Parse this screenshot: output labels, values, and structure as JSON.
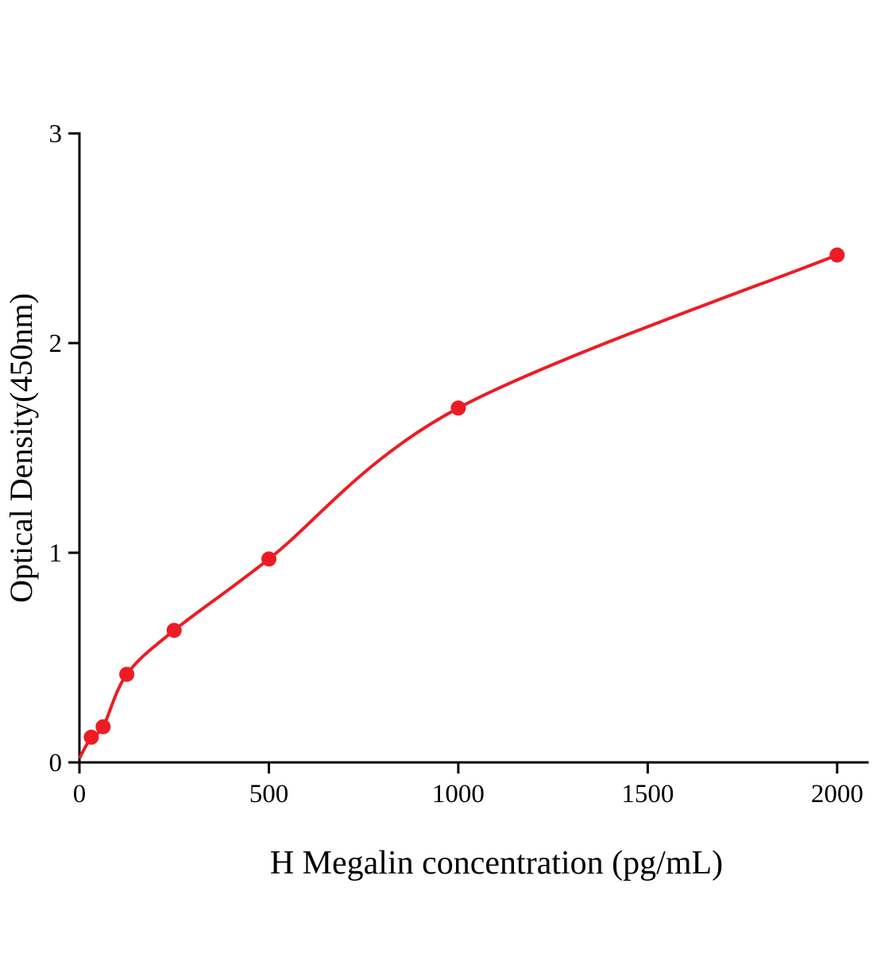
{
  "chart_data": {
    "type": "scatter",
    "title": "",
    "xlabel": "H Megalin concentration (pg/mL)",
    "ylabel": "Optical Density(450nm)",
    "x": [
      31.25,
      62.5,
      125,
      250,
      500,
      1000,
      2000
    ],
    "y": [
      0.12,
      0.17,
      0.42,
      0.63,
      0.97,
      1.69,
      2.42
    ],
    "curve_start": [
      0,
      0.02
    ],
    "xlim": [
      0,
      2080
    ],
    "ylim": [
      0,
      3
    ],
    "x_ticks": [
      0,
      500,
      1000,
      1500,
      2000
    ],
    "y_ticks": [
      0,
      1,
      2,
      3
    ],
    "marker_color": "#ED1C24",
    "line_color": "#ED1C24",
    "axis_color": "#000000",
    "grid": false,
    "legend": null
  }
}
